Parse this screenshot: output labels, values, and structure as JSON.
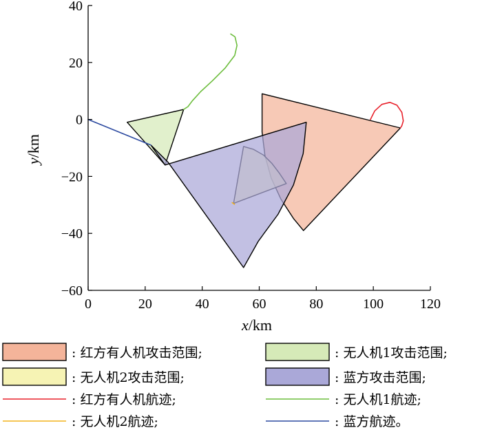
{
  "chart_data": {
    "type": "area",
    "xlabel_var": "x",
    "xlabel_unit": "/km",
    "ylabel_var": "y",
    "ylabel_unit": "/km",
    "xlim": [
      0,
      120
    ],
    "ylim": [
      -60,
      40
    ],
    "xticks": [
      0,
      20,
      40,
      60,
      80,
      100,
      120
    ],
    "yticks": [
      -60,
      -40,
      -20,
      0,
      20,
      40
    ],
    "grid": false,
    "legend_position": "bottom",
    "colors": {
      "red_fill": "#f4b49a",
      "green_fill": "#d6eab8",
      "yellow_fill": "#f6f3b4",
      "blue_fill": "#aaa8d8",
      "red_line": "#e8202a",
      "green_line": "#6cbd3c",
      "yellow_line": "#f2b21a",
      "blue_line": "#2c4aa0"
    },
    "sectors": [
      {
        "name": "红方有人机攻击范围",
        "legend_label": ": 红方有人机攻击范围;",
        "color": "red_fill",
        "points": [
          [
            109.5,
            -3
          ],
          [
            61,
            9
          ],
          [
            61,
            -4.4
          ],
          [
            62,
            -12.7
          ],
          [
            64.2,
            -20.6
          ],
          [
            67.6,
            -28
          ],
          [
            72.1,
            -34.9
          ],
          [
            75.5,
            -39
          ]
        ]
      },
      {
        "name": "无人机1攻击范围",
        "legend_label": ": 无人机1攻击范围;",
        "color": "green_fill",
        "points": [
          [
            27,
            -16
          ],
          [
            13.7,
            -1
          ],
          [
            33.5,
            3.5
          ]
        ]
      },
      {
        "name": "无人机2攻击范围",
        "legend_label": ": 无人机2攻击范围;",
        "color": "yellow_fill",
        "points": [
          [
            51,
            -29.5
          ],
          [
            54.5,
            -9.5
          ],
          [
            58,
            -10.5
          ],
          [
            61.5,
            -12.5
          ],
          [
            64.5,
            -15.5
          ],
          [
            67,
            -18.8
          ],
          [
            69.5,
            -22.5
          ]
        ]
      },
      {
        "name": "蓝方攻击范围",
        "legend_label": ": 蓝方攻击范围;",
        "color": "blue_fill",
        "points": [
          [
            27,
            -16
          ],
          [
            76.5,
            -1
          ],
          [
            75.4,
            -12
          ],
          [
            72,
            -23
          ],
          [
            66.6,
            -33.3
          ],
          [
            59.7,
            -42.7
          ],
          [
            54.5,
            -52
          ],
          [
            28,
            -15
          ],
          [
            22,
            -9
          ]
        ]
      }
    ],
    "tracks": [
      {
        "name": "红方有人机航迹",
        "legend_label": ": 红方有人机航迹;",
        "color": "red_line",
        "points": [
          [
            99,
            0
          ],
          [
            100.5,
            3
          ],
          [
            103,
            5.3
          ],
          [
            105.8,
            6
          ],
          [
            108.3,
            5
          ],
          [
            110,
            2.5
          ],
          [
            110.5,
            -0.5
          ],
          [
            110,
            -2.2
          ],
          [
            109.5,
            -3
          ]
        ]
      },
      {
        "name": "无人机1航迹",
        "legend_label": ": 无人机1航迹;",
        "color": "green_line",
        "points": [
          [
            50,
            30
          ],
          [
            51.5,
            29
          ],
          [
            52.2,
            26
          ],
          [
            51.4,
            22.5
          ],
          [
            48,
            18
          ],
          [
            43.5,
            13.5
          ],
          [
            39.5,
            9.8
          ],
          [
            36.5,
            6.5
          ],
          [
            35,
            4.5
          ],
          [
            33.5,
            3.5
          ]
        ]
      },
      {
        "name": "无人机2航迹",
        "legend_label": ": 无人机2航迹;",
        "color": "yellow_line",
        "points": [
          [
            50.5,
            -29.2
          ],
          [
            51.3,
            -29.8
          ]
        ]
      },
      {
        "name": "蓝方航迹",
        "legend_label": ": 蓝方航迹。",
        "color": "blue_line",
        "points": [
          [
            0,
            0
          ],
          [
            22,
            -9
          ]
        ]
      }
    ]
  }
}
